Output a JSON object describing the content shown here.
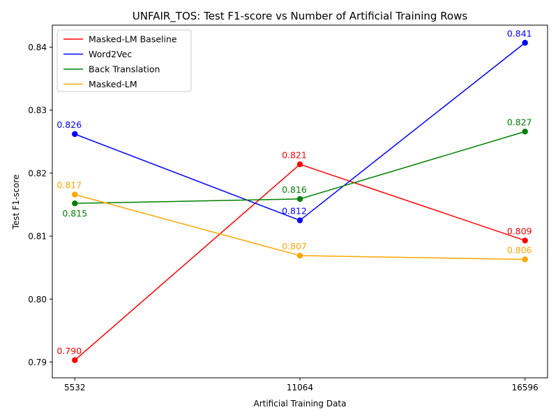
{
  "chart_data": {
    "type": "line",
    "title": "UNFAIR_TOS: Test F1-score vs Number of Artificial Training Rows",
    "xlabel": "Artificial Training Data",
    "ylabel": "Test F1-score",
    "x": [
      5532,
      11064,
      16596
    ],
    "x_tick_labels": [
      "5532",
      "11064",
      "16596"
    ],
    "ylim": [
      0.7875,
      0.8435
    ],
    "y_ticks": [
      0.79,
      0.8,
      0.81,
      0.82,
      0.83,
      0.84
    ],
    "y_tick_labels": [
      "0.79",
      "0.80",
      "0.81",
      "0.82",
      "0.83",
      "0.84"
    ],
    "grid": false,
    "legend_position": "top-left",
    "series": [
      {
        "name": "Masked-LM Baseline",
        "color": "#ff0000",
        "values": [
          0.7903,
          0.8214,
          0.8093
        ],
        "labels": [
          "0.790",
          "0.821",
          "0.809"
        ]
      },
      {
        "name": "Word2Vec",
        "color": "#0000ff",
        "values": [
          0.8262,
          0.8125,
          0.8407
        ],
        "labels": [
          "0.826",
          "0.812",
          "0.841"
        ]
      },
      {
        "name": "Back Translation",
        "color": "#008000",
        "values": [
          0.8152,
          0.8159,
          0.8266
        ],
        "labels": [
          "0.815",
          "0.816",
          "0.827"
        ]
      },
      {
        "name": "Masked-LM",
        "color": "#ffa500",
        "values": [
          0.8166,
          0.8069,
          0.8063
        ],
        "labels": [
          "0.817",
          "0.807",
          "0.806"
        ]
      }
    ]
  }
}
